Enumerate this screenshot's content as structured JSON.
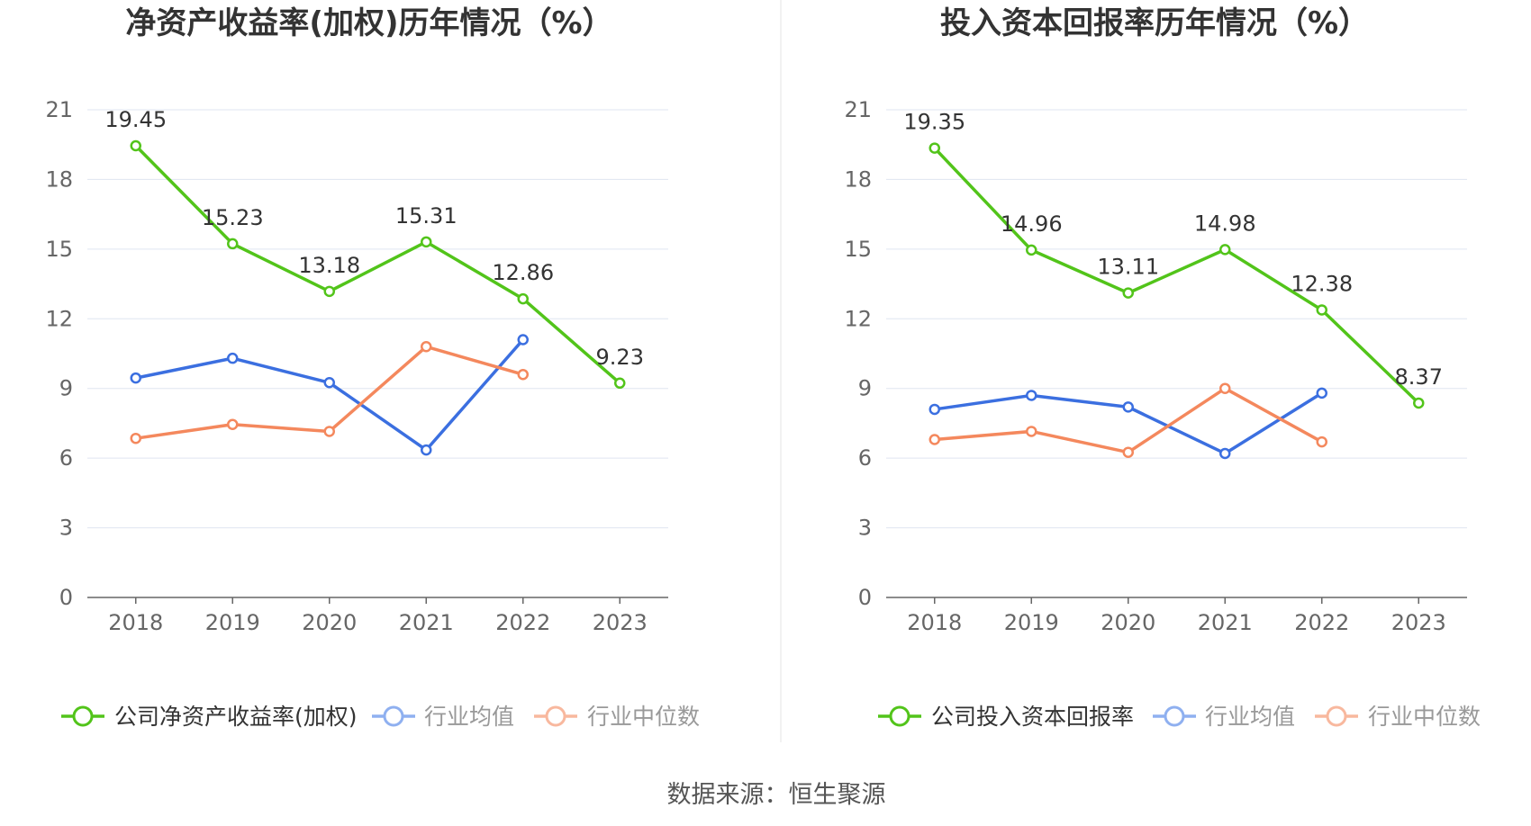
{
  "colors": {
    "company": "#52c41a",
    "average": "#3b6fe0",
    "median": "#f4885d",
    "grid": "#dfe5f0",
    "axis": "#666666"
  },
  "chart_data": [
    {
      "type": "line",
      "title": "净资产收益率(加权)历年情况（%）",
      "categories": [
        "2018",
        "2019",
        "2020",
        "2021",
        "2022",
        "2023"
      ],
      "ylim": [
        0,
        21
      ],
      "yticks": [
        "0",
        "3",
        "6",
        "9",
        "12",
        "15",
        "18",
        "21"
      ],
      "grid": true,
      "legend_position": "bottom",
      "series": [
        {
          "name": "公司净资产收益率(加权)",
          "color": "#52c41a",
          "values": [
            19.45,
            15.23,
            13.18,
            15.31,
            12.86,
            9.23
          ],
          "labels": [
            "19.45",
            "15.23",
            "13.18",
            "15.31",
            "12.86",
            "9.23"
          ]
        },
        {
          "name": "行业均值",
          "color": "#3b6fe0",
          "values": [
            9.45,
            10.3,
            9.25,
            6.35,
            11.1,
            null
          ]
        },
        {
          "name": "行业中位数",
          "color": "#f4885d",
          "values": [
            6.85,
            7.45,
            7.15,
            10.8,
            9.6,
            null
          ]
        }
      ]
    },
    {
      "type": "line",
      "title": "投入资本回报率历年情况（%）",
      "categories": [
        "2018",
        "2019",
        "2020",
        "2021",
        "2022",
        "2023"
      ],
      "ylim": [
        0,
        21
      ],
      "yticks": [
        "0",
        "3",
        "6",
        "9",
        "12",
        "15",
        "18",
        "21"
      ],
      "grid": true,
      "legend_position": "bottom",
      "series": [
        {
          "name": "公司投入资本回报率",
          "color": "#52c41a",
          "values": [
            19.35,
            14.96,
            13.11,
            14.98,
            12.38,
            8.37
          ],
          "labels": [
            "19.35",
            "14.96",
            "13.11",
            "14.98",
            "12.38",
            "8.37"
          ]
        },
        {
          "name": "行业均值",
          "color": "#3b6fe0",
          "values": [
            8.1,
            8.7,
            8.2,
            6.2,
            8.8,
            null
          ]
        },
        {
          "name": "行业中位数",
          "color": "#f4885d",
          "values": [
            6.8,
            7.15,
            6.25,
            9.0,
            6.7,
            null
          ]
        }
      ]
    }
  ],
  "footer": {
    "source": "数据来源：恒生聚源"
  }
}
